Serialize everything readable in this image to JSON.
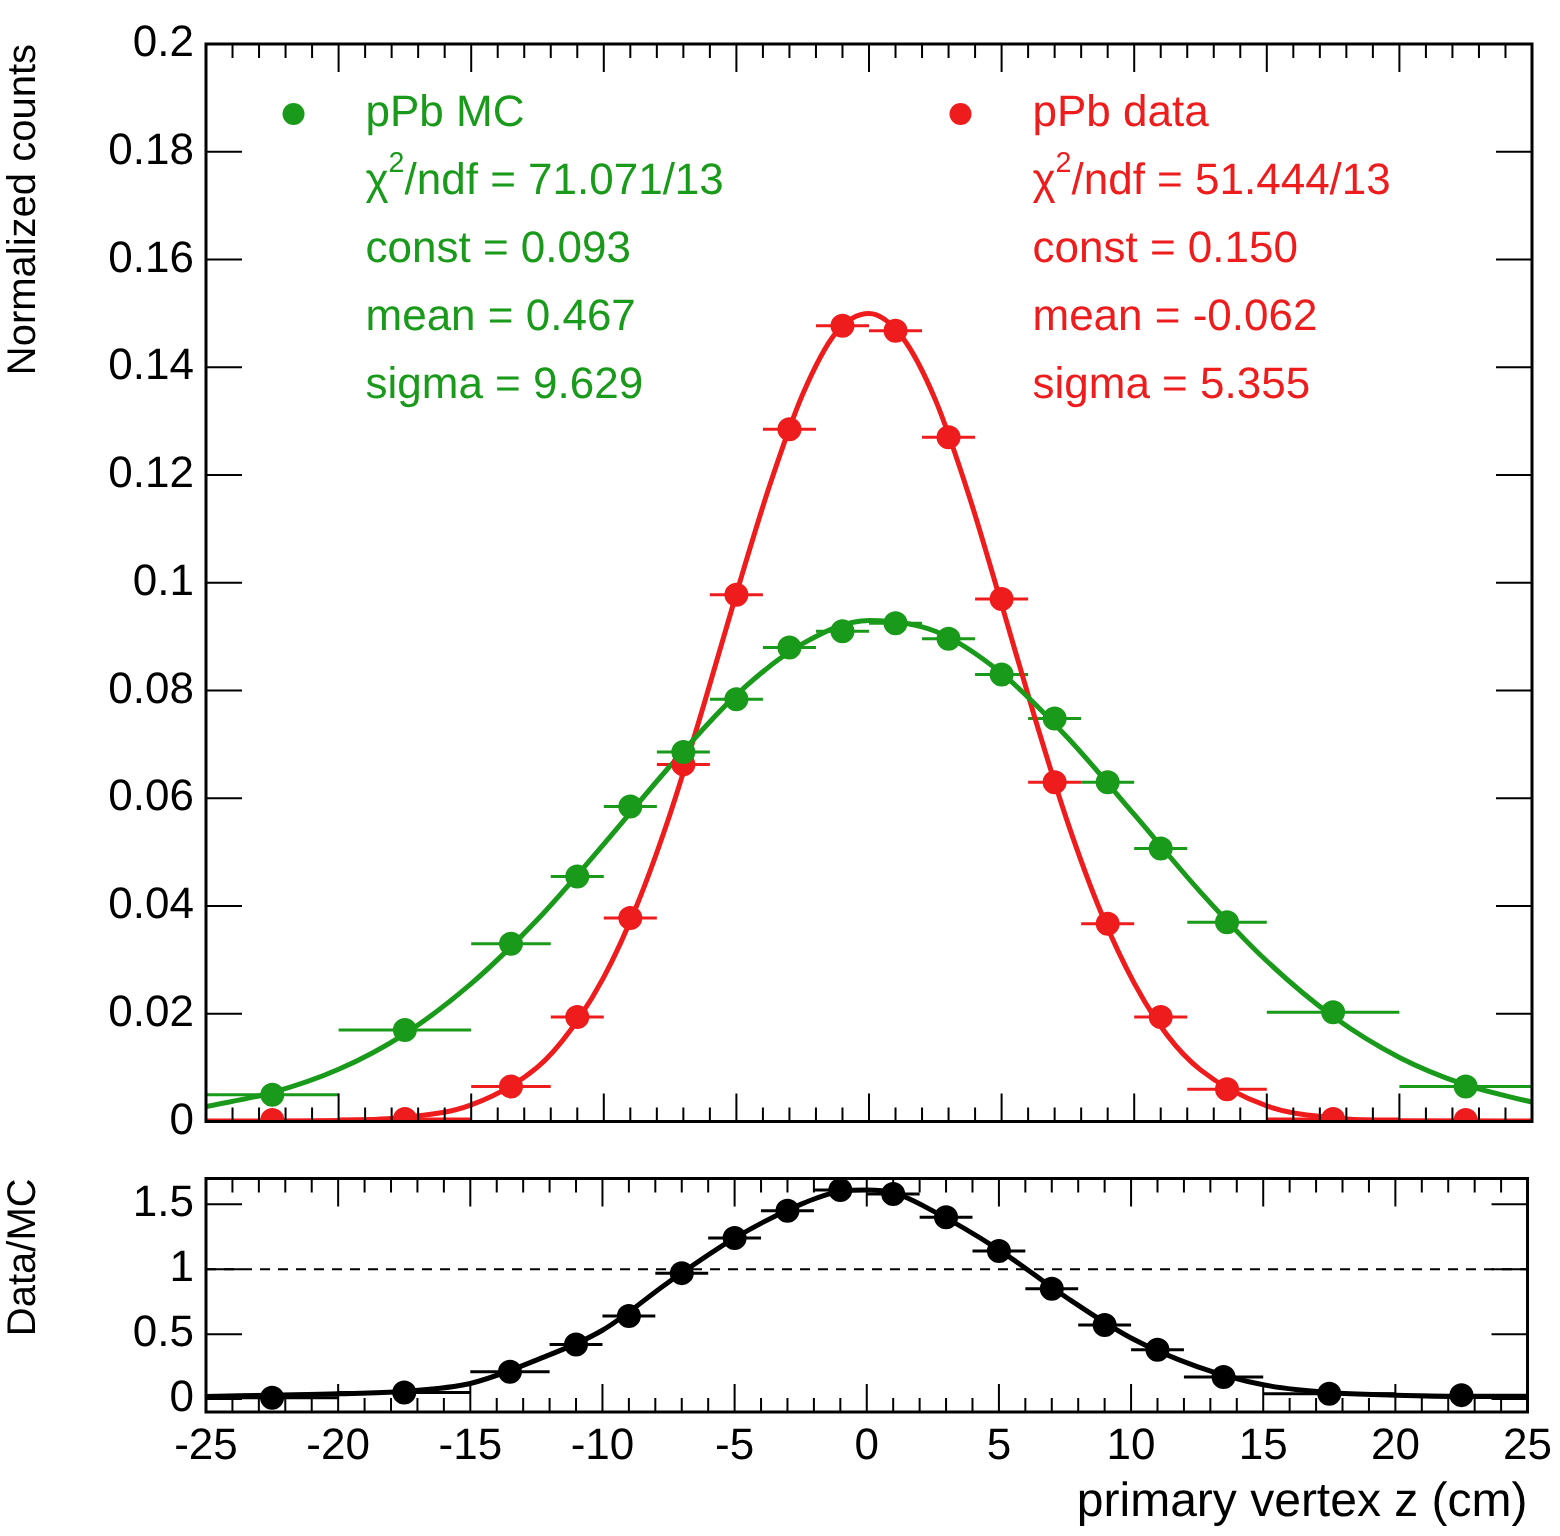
{
  "chart_data": [
    {
      "type": "scatter",
      "ylabel": "Normalized counts",
      "xlim": [
        -25,
        25
      ],
      "xticks": [
        -25,
        -20,
        -15,
        -10,
        -5,
        0,
        5,
        10,
        15,
        20,
        25
      ],
      "ylim": [
        0,
        0.2
      ],
      "yticks": [
        0,
        0.02,
        0.04,
        0.06,
        0.08,
        0.1,
        0.12,
        0.14,
        0.16,
        0.18,
        0.2
      ],
      "tick_labels": "y",
      "grid": false,
      "legend": "top",
      "marker": "circle",
      "annotations": [
        "χ$^{2}$/ndf = 71.071/13",
        "const = 0.093",
        "mean = 0.467",
        "sigma = 9.629",
        "χ$^{2}$/ndf = 51.444/13",
        "const = 0.150",
        "mean = -0.062",
        "sigma = 5.355"
      ],
      "series": [
        {
          "name": "pPb MC",
          "color": "#1a9a1a",
          "x": [
            -22.5,
            -17.5,
            -13.5,
            -11,
            -9,
            -7,
            -5,
            -3,
            -1,
            1,
            3,
            5,
            7,
            9,
            11,
            13.5,
            17.5,
            22.5
          ],
          "values": [
            0.005,
            0.017,
            0.033,
            0.0455,
            0.0585,
            0.0686,
            0.0784,
            0.088,
            0.091,
            0.0925,
            0.0896,
            0.083,
            0.0748,
            0.063,
            0.0507,
            0.037,
            0.0203,
            0.0065
          ],
          "xerrors": [
            2.5,
            2.5,
            1.5,
            1,
            1,
            1,
            1,
            1,
            1,
            1,
            1,
            1,
            1,
            1,
            1,
            1.5,
            2.5,
            2.5
          ]
        },
        {
          "name": "pPb data",
          "color": "#ee1c1c",
          "x": [
            -22.5,
            -17.5,
            -13.5,
            -11,
            -9,
            -7,
            -5,
            -3,
            -1,
            1,
            3,
            5,
            7,
            9,
            11,
            13.5,
            17.5,
            22.5
          ],
          "values": [
            0.0003,
            0.0005,
            0.0065,
            0.0194,
            0.0378,
            0.0663,
            0.0978,
            0.1285,
            0.1477,
            0.1468,
            0.127,
            0.097,
            0.063,
            0.0367,
            0.0194,
            0.006,
            0.0005,
            0.0003
          ],
          "xerrors": [
            2.5,
            2.5,
            1.5,
            1,
            1,
            1,
            1,
            1,
            1,
            1,
            1,
            1,
            1,
            1,
            1,
            1.5,
            2.5,
            2.5
          ]
        },
        {
          "type": "line",
          "marker": "none",
          "color": "#1a9a1a",
          "x": [
            -25,
            -22.5,
            -20,
            -17.5,
            -15,
            -12.5,
            -10,
            -7.5,
            -5,
            -2.5,
            0,
            2.5,
            5,
            7.5,
            10,
            12.5,
            15,
            17.5,
            20,
            22.5,
            25
          ],
          "values": [
            0.0028,
            0.0054,
            0.0097,
            0.0163,
            0.0256,
            0.0375,
            0.0515,
            0.066,
            0.0792,
            0.0887,
            0.093,
            0.091,
            0.0832,
            0.0712,
            0.057,
            0.0426,
            0.0298,
            0.0195,
            0.0119,
            0.0068,
            0.0036
          ]
        },
        {
          "type": "line",
          "marker": "none",
          "color": "#ee1c1c",
          "x": [
            -25,
            -20,
            -17.5,
            -15,
            -12.5,
            -11.25,
            -10,
            -8.75,
            -7.5,
            -6.25,
            -5,
            -3.75,
            -2.5,
            -1.25,
            0,
            1.25,
            2.5,
            3.75,
            5,
            6.25,
            7.5,
            8.75,
            10,
            11.25,
            12.5,
            15,
            17.5,
            20,
            25
          ],
          "values": [
            0,
            0.0002,
            0.0008,
            0.0031,
            0.0101,
            0.017,
            0.0268,
            0.0402,
            0.0571,
            0.077,
            0.098,
            0.118,
            0.135,
            0.1464,
            0.15,
            0.1456,
            0.134,
            0.1165,
            0.096,
            0.075,
            0.0554,
            0.0388,
            0.0257,
            0.016,
            0.0096,
            0.0029,
            0.0007,
            0.0001,
            0
          ]
        }
      ]
    },
    {
      "type": "scatter",
      "xlabel": "primary vertex z (cm)",
      "ylabel": "Data/MC",
      "xlim": [
        -25,
        25
      ],
      "xticks": [
        -25,
        -20,
        -15,
        -10,
        -5,
        0,
        5,
        10,
        15,
        20,
        25
      ],
      "ylim": [
        -0.1,
        1.7
      ],
      "yticks": [
        0,
        0.5,
        1,
        1.5
      ],
      "grid": false,
      "marker": "circle",
      "ref_lines": [
        {
          "axis": "y",
          "value": 1,
          "line_style": "dashed",
          "color": "#000000"
        }
      ],
      "series": [
        {
          "color": "#000000",
          "x": [
            -22.5,
            -17.5,
            -13.5,
            -11,
            -9,
            -7,
            -5,
            -3,
            -1,
            1,
            3,
            5,
            7,
            9,
            11,
            13.5,
            17.5,
            22.5
          ],
          "values": [
            0.01,
            0.05,
            0.21,
            0.42,
            0.64,
            0.97,
            1.24,
            1.45,
            1.61,
            1.58,
            1.4,
            1.14,
            0.85,
            0.57,
            0.38,
            0.17,
            0.04,
            0.03
          ],
          "xerrors": [
            2.5,
            2.5,
            1.5,
            1,
            1,
            1,
            1,
            1,
            1,
            1,
            1,
            1,
            1,
            1,
            1,
            1.5,
            2.5,
            2.5
          ]
        },
        {
          "type": "line",
          "marker": "none",
          "color": "#000000",
          "x": [
            -25,
            -22.5,
            -20,
            -17.5,
            -15,
            -12.5,
            -10,
            -7.5,
            -5,
            -2.5,
            -1,
            0,
            1,
            2.5,
            5,
            7.5,
            10,
            12.5,
            15,
            17.5,
            20,
            22.5,
            25
          ],
          "values": [
            0.02,
            0.03,
            0.04,
            0.06,
            0.12,
            0.3,
            0.53,
            0.9,
            1.24,
            1.5,
            1.6,
            1.61,
            1.59,
            1.45,
            1.15,
            0.79,
            0.47,
            0.25,
            0.11,
            0.05,
            0.03,
            0.02,
            0.02
          ]
        }
      ]
    }
  ]
}
